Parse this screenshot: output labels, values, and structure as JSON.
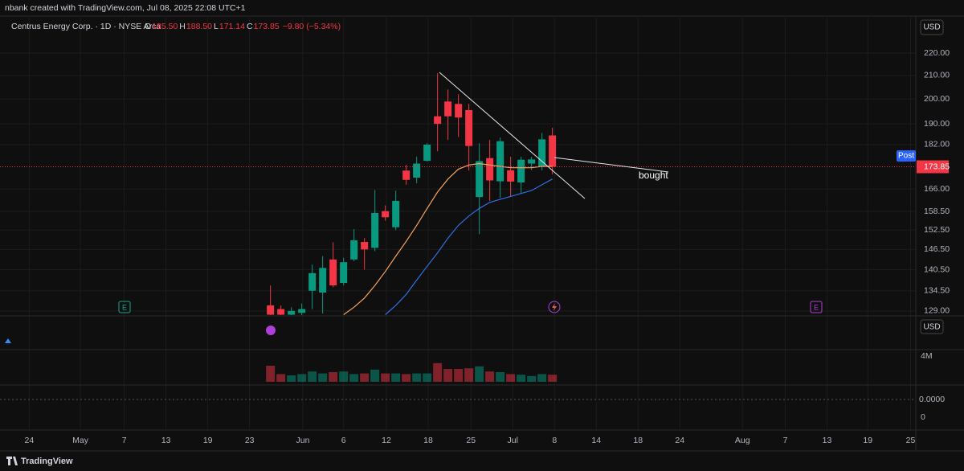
{
  "header": {
    "credit": "nbank created with TradingView.com, Jul 08, 2025 22:08 UTC+1",
    "symbol": "Centrus Energy Corp. · 1D · NYSE Arca",
    "ohlc": [
      {
        "key": "O",
        "value": "185.50"
      },
      {
        "key": "H",
        "value": "188.50"
      },
      {
        "key": "L",
        "value": "171.14"
      },
      {
        "key": "C",
        "value": "173.85"
      }
    ],
    "change": "−9.80 (−5.34%)"
  },
  "currency": "USD",
  "pane_currency": "USD",
  "post_label": "Post",
  "last_price": "173.85",
  "annotation": "bought",
  "earnings_marker": "E",
  "indicator_labels": [
    "0.0000",
    "0"
  ],
  "footer": "TradingView",
  "chart_data": {
    "type": "candlestick",
    "x": [
      0,
      1,
      2,
      3,
      4,
      5,
      6,
      7,
      8,
      9,
      10,
      11,
      12,
      13,
      14,
      15,
      16,
      17,
      18,
      19,
      20,
      21,
      22,
      23,
      24,
      25,
      26,
      27
    ],
    "open": [
      130.5,
      129.5,
      128,
      128.5,
      134.5,
      134,
      143.5,
      136.7,
      143.5,
      148.8,
      147,
      158.6,
      153.4,
      172.5,
      170,
      176,
      193,
      199,
      198,
      195.5,
      163.3,
      177,
      168.7,
      172.6,
      168.3,
      175,
      173.8,
      185.5
    ],
    "high": [
      136,
      130.5,
      130,
      131,
      142,
      144.5,
      148.7,
      144,
      152.8,
      150,
      165.7,
      160.5,
      165.5,
      174.6,
      177.5,
      182.5,
      211,
      204,
      202,
      198,
      182.5,
      183.8,
      184.7,
      177.5,
      177.5,
      177.5,
      186.5,
      188.5
    ],
    "low": [
      127,
      127,
      127,
      127.5,
      129.5,
      128.3,
      135.5,
      136,
      143,
      140.5,
      146,
      155.5,
      152.5,
      167.5,
      168,
      175.8,
      179.5,
      183.8,
      184.9,
      172.5,
      151.2,
      162,
      163,
      163.5,
      164.5,
      172.6,
      172.6,
      171.14
    ],
    "close": [
      128,
      128,
      129,
      129.5,
      139.5,
      141,
      136,
      142.7,
      149.3,
      146.5,
      158,
      156.6,
      162,
      169.2,
      175,
      182,
      190,
      193,
      192.5,
      181.5,
      175.9,
      169,
      183.3,
      168.6,
      176.4,
      176.5,
      184,
      173.85
    ],
    "up_color": "#089981",
    "down_color": "#f23645",
    "series": [
      {
        "color": "#f7a35c",
        "values": [
          null,
          null,
          null,
          null,
          null,
          null,
          null,
          128,
          130,
          132.5,
          136,
          140,
          144.5,
          149,
          154,
          159.5,
          165,
          169.5,
          173,
          174.5,
          175,
          174.5,
          174,
          173.5,
          173.5,
          173.5,
          174,
          174
        ]
      },
      {
        "color": "#2f6fe4",
        "values": [
          null,
          null,
          null,
          null,
          null,
          null,
          null,
          null,
          null,
          null,
          null,
          128,
          130.5,
          133.5,
          137.5,
          141.5,
          145.5,
          150,
          154,
          157,
          159.5,
          161.5,
          162.5,
          163.5,
          164.5,
          165.5,
          167.5,
          169.5
        ]
      }
    ],
    "volume": [
      2.5,
      1.2,
      1.0,
      1.2,
      1.6,
      1.3,
      1.5,
      1.6,
      1.2,
      1.3,
      1.9,
      1.3,
      1.3,
      1.2,
      1.3,
      1.3,
      2.9,
      2.0,
      2.0,
      2.1,
      2.4,
      1.6,
      1.5,
      1.2,
      1.1,
      0.9,
      1.2,
      1.1
    ],
    "volume_lim": [
      0,
      4.75
    ],
    "volume_ticks": [
      {
        "value": 4,
        "label": "4M"
      }
    ],
    "log_scale": true,
    "grid": true,
    "xlim": [
      -25.9,
      61.8
    ],
    "xticks": [
      {
        "value": -23.1,
        "label": "24"
      },
      {
        "value": -18.2,
        "label": "May"
      },
      {
        "value": -14.0,
        "label": "7"
      },
      {
        "value": -10.0,
        "label": "13"
      },
      {
        "value": -6.0,
        "label": "19"
      },
      {
        "value": -2.0,
        "label": "23"
      },
      {
        "value": 3.1,
        "label": "Jun"
      },
      {
        "value": 7.0,
        "label": "6"
      },
      {
        "value": 11.1,
        "label": "12"
      },
      {
        "value": 15.1,
        "label": "18"
      },
      {
        "value": 19.2,
        "label": "25"
      },
      {
        "value": 23.2,
        "label": "Jul"
      },
      {
        "value": 27.2,
        "label": "8"
      },
      {
        "value": 31.2,
        "label": "14"
      },
      {
        "value": 35.2,
        "label": "18"
      },
      {
        "value": 39.2,
        "label": "24"
      },
      {
        "value": 45.2,
        "label": "Aug"
      },
      {
        "value": 49.3,
        "label": "7"
      },
      {
        "value": 53.3,
        "label": "13"
      },
      {
        "value": 57.2,
        "label": "19"
      },
      {
        "value": 61.3,
        "label": "25"
      }
    ],
    "ylim": [
      127.9,
      236.7
    ],
    "yticks": [
      {
        "value": 129,
        "label": "129.00"
      },
      {
        "value": 134.5,
        "label": "134.50"
      },
      {
        "value": 140.5,
        "label": "140.50"
      },
      {
        "value": 146.5,
        "label": "146.50"
      },
      {
        "value": 152.5,
        "label": "152.50"
      },
      {
        "value": 158.5,
        "label": "158.50"
      },
      {
        "value": 166,
        "label": "166.00"
      },
      {
        "value": 182,
        "label": "182.00"
      },
      {
        "value": 190,
        "label": "190.00"
      },
      {
        "value": 200,
        "label": "200.00"
      },
      {
        "value": 210,
        "label": "210.00"
      },
      {
        "value": 220,
        "label": "220.00"
      }
    ]
  }
}
